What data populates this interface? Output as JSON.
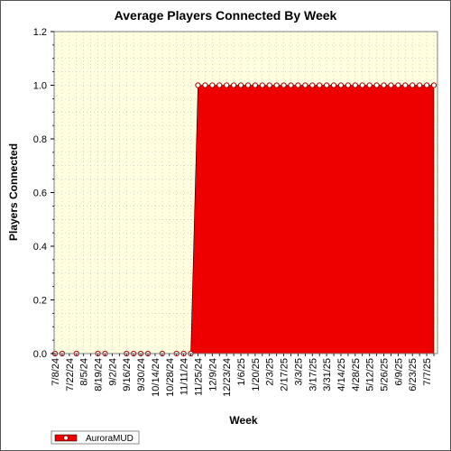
{
  "chart_data": {
    "type": "area",
    "title": "Average Players Connected By Week",
    "xlabel": "Week",
    "ylabel": "Players Connected",
    "ylim": [
      0,
      1.2
    ],
    "yticks": [
      "0.0",
      "0.2",
      "0.4",
      "0.6",
      "0.8",
      "1.0",
      "1.2"
    ],
    "x_tick_labels": [
      "7/8/24",
      "7/22/24",
      "8/5/24",
      "8/19/24",
      "9/2/24",
      "9/16/24",
      "9/30/24",
      "10/14/24",
      "10/28/24",
      "11/11/24",
      "11/25/24",
      "12/9/24",
      "12/23/24",
      "1/6/25",
      "1/20/25",
      "2/3/25",
      "2/17/25",
      "3/3/25",
      "3/17/25",
      "3/31/25",
      "4/14/25",
      "4/28/25",
      "5/12/25",
      "5/26/25",
      "6/9/25",
      "6/23/25",
      "7/7/25"
    ],
    "x": [
      "7/8/24",
      "7/15/24",
      "7/22/24",
      "7/29/24",
      "8/5/24",
      "8/12/24",
      "8/19/24",
      "8/26/24",
      "9/2/24",
      "9/9/24",
      "9/16/24",
      "9/23/24",
      "9/30/24",
      "10/7/24",
      "10/14/24",
      "10/21/24",
      "10/28/24",
      "11/4/24",
      "11/11/24",
      "11/18/24",
      "11/25/24",
      "12/2/24",
      "12/9/24",
      "12/16/24",
      "12/23/24",
      "12/30/24",
      "1/6/25",
      "1/13/25",
      "1/20/25",
      "1/27/25",
      "2/3/25",
      "2/10/25",
      "2/17/25",
      "2/24/25",
      "3/3/25",
      "3/10/25",
      "3/17/25",
      "3/24/25",
      "3/31/25",
      "4/7/25",
      "4/14/25",
      "4/21/25",
      "4/28/25",
      "5/5/25",
      "5/12/25",
      "5/19/25",
      "5/26/25",
      "6/2/25",
      "6/9/25",
      "6/16/25",
      "6/23/25",
      "6/30/25",
      "7/7/25",
      "7/14/25"
    ],
    "series": [
      {
        "name": "AuroraMUD",
        "values": [
          0,
          0,
          0,
          0,
          0,
          0,
          0,
          0,
          0,
          0,
          0,
          0,
          0,
          0,
          0,
          0,
          0,
          0,
          0,
          0,
          1,
          1,
          1,
          1,
          1,
          1,
          1,
          1,
          1,
          1,
          1,
          1,
          1,
          1,
          1,
          1,
          1,
          1,
          1,
          1,
          1,
          1,
          1,
          1,
          1,
          1,
          1,
          1,
          1,
          1,
          1,
          1,
          1,
          1
        ],
        "markers_y0": [
          0,
          1,
          3,
          6,
          7,
          10,
          11,
          12,
          13,
          15,
          17,
          18,
          19
        ]
      }
    ],
    "colors": {
      "area": "#ee0000",
      "plot_bg": "#ffffe0",
      "grid": "#bbbbbb",
      "marker_fill": "#ffffff",
      "marker_stroke": "#aa0000"
    },
    "grid": true,
    "legend": "bottom-left"
  }
}
